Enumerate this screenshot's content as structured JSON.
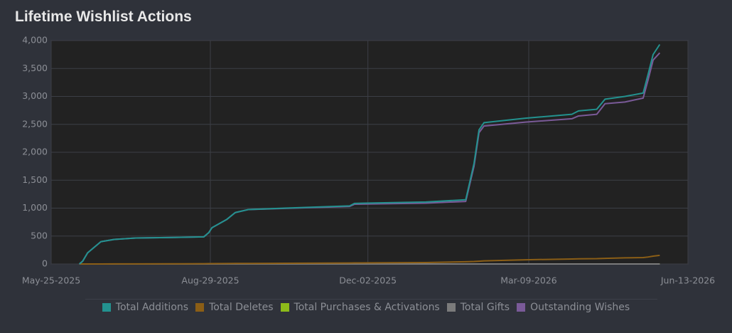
{
  "chart_data": {
    "type": "line",
    "title": "Lifetime Wishlist Actions",
    "x": [
      "2025-06-11",
      "2025-06-13",
      "2025-06-16",
      "2025-06-24",
      "2025-07-02",
      "2025-07-15",
      "2025-08-06",
      "2025-08-25",
      "2025-08-28",
      "2025-08-30",
      "2025-09-08",
      "2025-09-13",
      "2025-09-21",
      "2025-10-13",
      "2025-11-21",
      "2025-11-24",
      "2026-01-06",
      "2026-01-30",
      "2026-02-04",
      "2026-02-07",
      "2026-02-10",
      "2026-03-07",
      "2026-04-04",
      "2026-04-08",
      "2026-04-19",
      "2026-04-24",
      "2026-05-06",
      "2026-05-17",
      "2026-05-20",
      "2026-05-23",
      "2026-05-27"
    ],
    "series": [
      {
        "name": "Total Additions",
        "color": "#23928f",
        "values": [
          0,
          50,
          200,
          400,
          440,
          465,
          475,
          485,
          560,
          650,
          800,
          920,
          975,
          1000,
          1040,
          1085,
          1110,
          1150,
          1800,
          2400,
          2530,
          2610,
          2680,
          2740,
          2770,
          2950,
          3000,
          3060,
          3400,
          3750,
          3930
        ]
      },
      {
        "name": "Total Deletes",
        "color": "#8b5e16",
        "values": [
          0,
          0,
          0,
          0,
          1,
          2,
          3,
          5,
          6,
          7,
          8,
          9,
          10,
          12,
          18,
          19,
          25,
          40,
          45,
          50,
          55,
          75,
          90,
          92,
          95,
          100,
          110,
          115,
          125,
          140,
          155
        ]
      },
      {
        "name": "Total Purchases & Activations",
        "color": "#8dbb1a",
        "values": [
          0,
          0,
          0,
          0,
          0,
          0,
          0,
          0,
          0,
          0,
          0,
          0,
          0,
          0,
          0,
          0,
          0,
          0,
          0,
          0,
          0,
          0,
          0,
          0,
          0,
          0,
          0,
          0,
          0,
          0,
          0
        ]
      },
      {
        "name": "Total Gifts",
        "color": "#7b7b7b",
        "values": [
          0,
          0,
          0,
          0,
          0,
          0,
          0,
          0,
          0,
          0,
          0,
          0,
          0,
          0,
          0,
          0,
          0,
          0,
          0,
          0,
          0,
          0,
          0,
          0,
          0,
          0,
          0,
          0,
          0,
          0,
          0
        ]
      },
      {
        "name": "Outstanding Wishes",
        "color": "#7a5a98",
        "values": [
          0,
          50,
          200,
          400,
          440,
          465,
          475,
          485,
          560,
          650,
          800,
          920,
          975,
          995,
          1030,
          1070,
          1090,
          1120,
          1750,
          2350,
          2470,
          2540,
          2600,
          2650,
          2680,
          2870,
          2900,
          2970,
          3300,
          3650,
          3780
        ]
      }
    ],
    "xlim": [
      "2025-05-25",
      "2026-06-13"
    ],
    "xticks": [
      {
        "value": "2025-05-25",
        "label": "May-25-2025"
      },
      {
        "value": "2025-08-29",
        "label": "Aug-29-2025"
      },
      {
        "value": "2025-12-02",
        "label": "Dec-02-2025"
      },
      {
        "value": "2026-03-09",
        "label": "Mar-09-2026"
      },
      {
        "value": "2026-06-13",
        "label": "Jun-13-2026"
      }
    ],
    "ylim": [
      0,
      4000
    ],
    "yticks": [
      0,
      500,
      {
        "value": 1000,
        "label": "1,000"
      },
      {
        "value": 1500,
        "label": "1,500"
      },
      {
        "value": 2000,
        "label": "2,000"
      },
      {
        "value": 2500,
        "label": "2,500"
      },
      {
        "value": 3000,
        "label": "3,000"
      },
      {
        "value": 3500,
        "label": "3,500"
      },
      {
        "value": 4000,
        "label": "4,000"
      }
    ],
    "grid": true,
    "legend": "bottom"
  }
}
